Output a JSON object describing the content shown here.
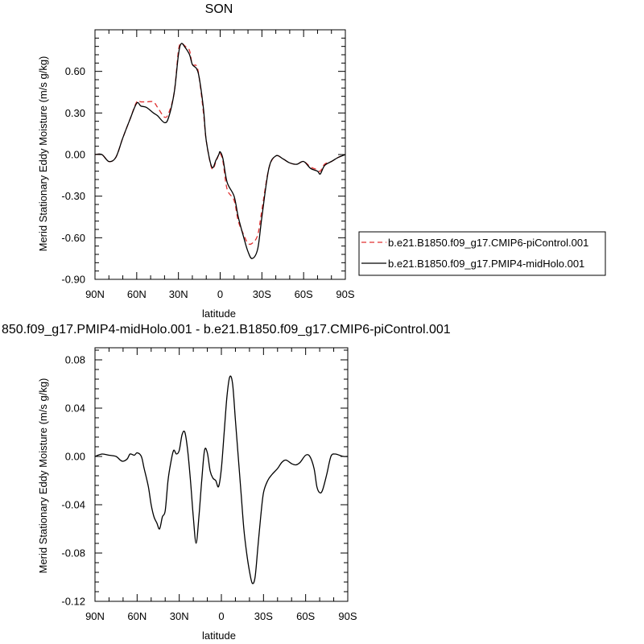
{
  "chart_data": [
    {
      "type": "line",
      "title": "SON",
      "xlabel": "latitude",
      "ylabel": "Merid Stationary Eddy Moisture (m/s g/kg)",
      "xlim": [
        90,
        -90
      ],
      "ylim": [
        -0.9,
        0.9
      ],
      "x_ticks": [
        90,
        60,
        30,
        0,
        -30,
        -60,
        -90
      ],
      "x_tick_labels": [
        "90N",
        "60N",
        "30N",
        "0",
        "30S",
        "60S",
        "90S"
      ],
      "y_ticks": [
        0.6,
        0.3,
        0.0,
        -0.3,
        -0.6,
        -0.9
      ],
      "y_tick_labels": [
        "0.60",
        "0.30",
        "0.00",
        "-0.30",
        "-0.60",
        "-0.90"
      ],
      "legend_position": "right",
      "series": [
        {
          "name": "b.e21.B1850.f09_g17.CMIP6-piControl.001",
          "color": "#e03030",
          "dash": "dashed",
          "x": [
            90,
            85,
            80,
            75,
            70,
            65,
            60,
            57,
            53,
            48,
            45,
            40,
            37,
            33,
            30,
            28,
            25,
            22,
            20,
            17,
            15,
            12,
            10,
            6,
            3,
            1,
            0,
            -2,
            -5,
            -10,
            -13,
            -17,
            -20,
            -23,
            -27,
            -30,
            -35,
            -40,
            -45,
            -50,
            -55,
            -60,
            -65,
            -70,
            -72,
            -75,
            -80,
            -85,
            -90
          ],
          "y": [
            0,
            0,
            -0.05,
            -0.02,
            0.12,
            0.25,
            0.38,
            0.38,
            0.38,
            0.38,
            0.34,
            0.27,
            0.3,
            0.45,
            0.75,
            0.8,
            0.78,
            0.75,
            0.65,
            0.64,
            0.55,
            0.3,
            0.1,
            -0.1,
            -0.05,
            0,
            0.01,
            -0.05,
            -0.25,
            -0.33,
            -0.48,
            -0.58,
            -0.64,
            -0.64,
            -0.58,
            -0.4,
            -0.1,
            -0.01,
            -0.03,
            -0.06,
            -0.07,
            -0.05,
            -0.09,
            -0.11,
            -0.12,
            -0.07,
            -0.05,
            -0.02,
            0
          ]
        },
        {
          "name": "b.e21.B1850.f09_g17.PMIP4-midHolo.001",
          "color": "#000000",
          "dash": "solid",
          "x": [
            90,
            85,
            80,
            75,
            70,
            65,
            60,
            57,
            53,
            48,
            45,
            40,
            37,
            33,
            30,
            28,
            25,
            22,
            20,
            17,
            15,
            12,
            10,
            6,
            3,
            1,
            0,
            -2,
            -5,
            -10,
            -13,
            -17,
            -20,
            -23,
            -27,
            -30,
            -35,
            -40,
            -45,
            -50,
            -55,
            -60,
            -65,
            -70,
            -72,
            -75,
            -80,
            -85,
            -90
          ],
          "y": [
            0,
            0,
            -0.05,
            -0.02,
            0.12,
            0.25,
            0.37,
            0.35,
            0.34,
            0.3,
            0.28,
            0.23,
            0.27,
            0.45,
            0.72,
            0.8,
            0.77,
            0.72,
            0.65,
            0.62,
            0.55,
            0.33,
            0.1,
            -0.09,
            -0.04,
            0,
            0.02,
            -0.03,
            -0.2,
            -0.3,
            -0.45,
            -0.6,
            -0.7,
            -0.75,
            -0.68,
            -0.45,
            -0.1,
            -0.01,
            -0.03,
            -0.06,
            -0.07,
            -0.05,
            -0.1,
            -0.12,
            -0.14,
            -0.08,
            -0.05,
            -0.02,
            0
          ]
        }
      ]
    },
    {
      "type": "line",
      "title": "850.f09_g17.PMIP4-midHolo.001 - b.e21.B1850.f09_g17.CMIP6-piControl.001",
      "xlabel": "latitude",
      "ylabel": "Merid Stationary Eddy Moisture (m/s g/kg)",
      "xlim": [
        90,
        -90
      ],
      "ylim": [
        -0.12,
        0.09
      ],
      "x_ticks": [
        90,
        60,
        30,
        0,
        -30,
        -60,
        -90
      ],
      "x_tick_labels": [
        "90N",
        "60N",
        "30N",
        "0",
        "30S",
        "60S",
        "90S"
      ],
      "y_ticks": [
        0.08,
        0.04,
        0.0,
        -0.04,
        -0.08,
        -0.12
      ],
      "y_tick_labels": [
        "0.08",
        "0.04",
        "0.00",
        "-0.04",
        "-0.08",
        "-0.12"
      ],
      "series": [
        {
          "color": "#000000",
          "dash": "solid",
          "x": [
            90,
            85,
            80,
            75,
            72,
            70,
            67,
            65,
            62,
            60,
            57,
            55,
            52,
            50,
            48,
            46,
            44,
            42,
            40,
            38,
            36,
            34,
            32,
            30,
            28,
            26,
            24,
            22,
            20,
            18,
            16,
            14,
            12,
            10,
            8,
            6,
            4,
            2,
            0,
            -2,
            -4,
            -6,
            -8,
            -10,
            -12,
            -14,
            -16,
            -18,
            -20,
            -22,
            -24,
            -26,
            -28,
            -30,
            -33,
            -36,
            -40,
            -43,
            -46,
            -50,
            -53,
            -56,
            -60,
            -63,
            -66,
            -68,
            -70,
            -72,
            -75,
            -78,
            -81,
            -84,
            -87,
            -90
          ],
          "y": [
            0,
            0.002,
            0.001,
            0,
            -0.003,
            -0.004,
            -0.002,
            0.002,
            0.001,
            0.003,
            0,
            -0.01,
            -0.025,
            -0.04,
            -0.05,
            -0.055,
            -0.06,
            -0.05,
            -0.045,
            -0.02,
            -0.005,
            0.005,
            0.002,
            0.005,
            0.018,
            0.02,
            0.005,
            -0.02,
            -0.05,
            -0.072,
            -0.05,
            -0.02,
            0.005,
            0.003,
            -0.012,
            -0.018,
            -0.02,
            -0.025,
            -0.01,
            0.02,
            0.05,
            0.066,
            0.06,
            0.03,
            0,
            -0.03,
            -0.06,
            -0.08,
            -0.095,
            -0.105,
            -0.1,
            -0.075,
            -0.05,
            -0.03,
            -0.02,
            -0.015,
            -0.01,
            -0.005,
            -0.003,
            -0.006,
            -0.007,
            -0.005,
            0.001,
            0,
            -0.01,
            -0.025,
            -0.03,
            -0.028,
            -0.015,
            0,
            0.002,
            0.001,
            0,
            0
          ]
        }
      ]
    }
  ]
}
